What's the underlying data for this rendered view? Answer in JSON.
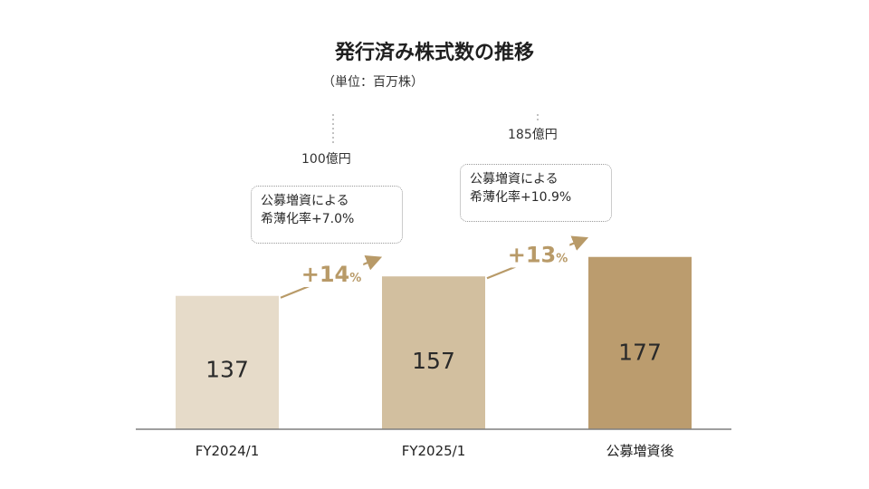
{
  "title": "発行済み株式数の推移",
  "subtitle": "（単位：百万株）",
  "chart_data": {
    "type": "bar",
    "categories": [
      "FY2024/1",
      "FY2025/1",
      "公募増資後"
    ],
    "values": [
      137,
      157,
      177
    ],
    "ylim": [
      0,
      200
    ],
    "grid": false,
    "colors": [
      "#e6dbc9",
      "#d2bf9f",
      "#bb9c6e"
    ],
    "growth_labels": [
      {
        "text": "+14",
        "unit": "%"
      },
      {
        "text": "+13",
        "unit": "%"
      }
    ],
    "growth_color": "#b89a68"
  },
  "annotations": [
    {
      "amount": "100億円",
      "line1": "公募増資による",
      "line2": "希薄化率+7.0%"
    },
    {
      "amount": "185億円",
      "line1": "公募増資による",
      "line2": "希薄化率+10.9%"
    }
  ]
}
